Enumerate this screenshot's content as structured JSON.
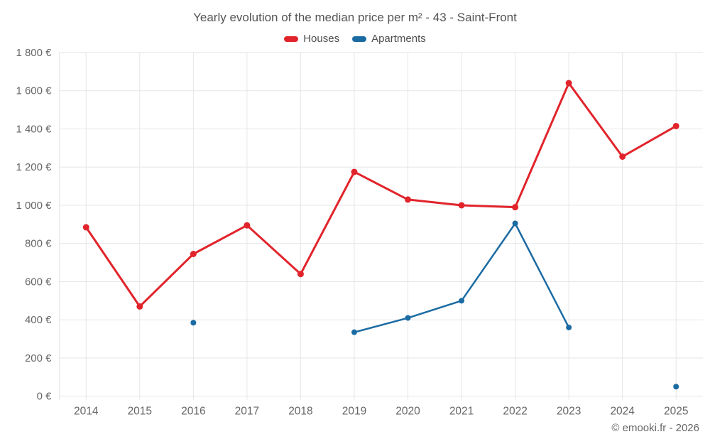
{
  "header": {
    "title": "Yearly evolution of the median price per m² - 43 - Saint-Front"
  },
  "legend": {
    "items": [
      {
        "label": "Houses",
        "color": "#e1242b"
      },
      {
        "label": "Apartments",
        "color": "#1b6ba3"
      }
    ]
  },
  "footer": {
    "credit": "© emooki.fr - 2026"
  },
  "chart_data": {
    "type": "line",
    "title": "Yearly evolution of the median price per m² - 43 - Saint-Front",
    "categories": [
      "2014",
      "2015",
      "2016",
      "2017",
      "2018",
      "2019",
      "2020",
      "2021",
      "2022",
      "2023",
      "2024",
      "2025"
    ],
    "series": [
      {
        "name": "Houses",
        "color": "#e1242b",
        "line_width": 3,
        "marker_radius": 4.5,
        "values": [
          885,
          470,
          745,
          895,
          640,
          1175,
          1030,
          1000,
          990,
          1640,
          1255,
          1415
        ]
      },
      {
        "name": "Apartments",
        "color": "#1b6ba3",
        "line_width": 2.5,
        "marker_radius": 4,
        "values": [
          null,
          null,
          385,
          null,
          null,
          335,
          410,
          500,
          905,
          360,
          null,
          50
        ]
      }
    ],
    "xlabel": "",
    "ylabel": "",
    "ylim": [
      0,
      1800
    ],
    "ytick_step": 200,
    "ytick_labels": [
      "0 €",
      "200 €",
      "400 €",
      "600 €",
      "800 €",
      "1 000 €",
      "1 200 €",
      "1 400 €",
      "1 600 €",
      "1 800 €"
    ],
    "grid": true,
    "legend_position": "top",
    "colors": {
      "grid": "#e6e6e6",
      "axis_text": "#666666"
    }
  }
}
